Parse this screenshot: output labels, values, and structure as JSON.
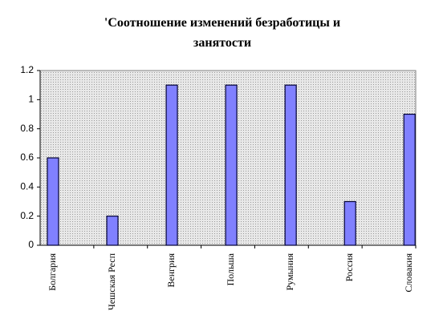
{
  "chart_data": {
    "type": "bar",
    "title": "'Соотношение изменений безработицы и занятости",
    "categories": [
      "Болгария",
      "Чешская Респ",
      "Венгрия",
      "Польша",
      "Румыния",
      "Россия",
      "Словакия"
    ],
    "values": [
      0.6,
      0.2,
      1.1,
      1.1,
      1.1,
      0.3,
      0.9
    ],
    "color": "#8080ff",
    "ylim": [
      0,
      1.2
    ],
    "yticks": [
      0,
      0.2,
      0.4,
      0.6,
      0.8,
      1,
      1.2
    ]
  }
}
